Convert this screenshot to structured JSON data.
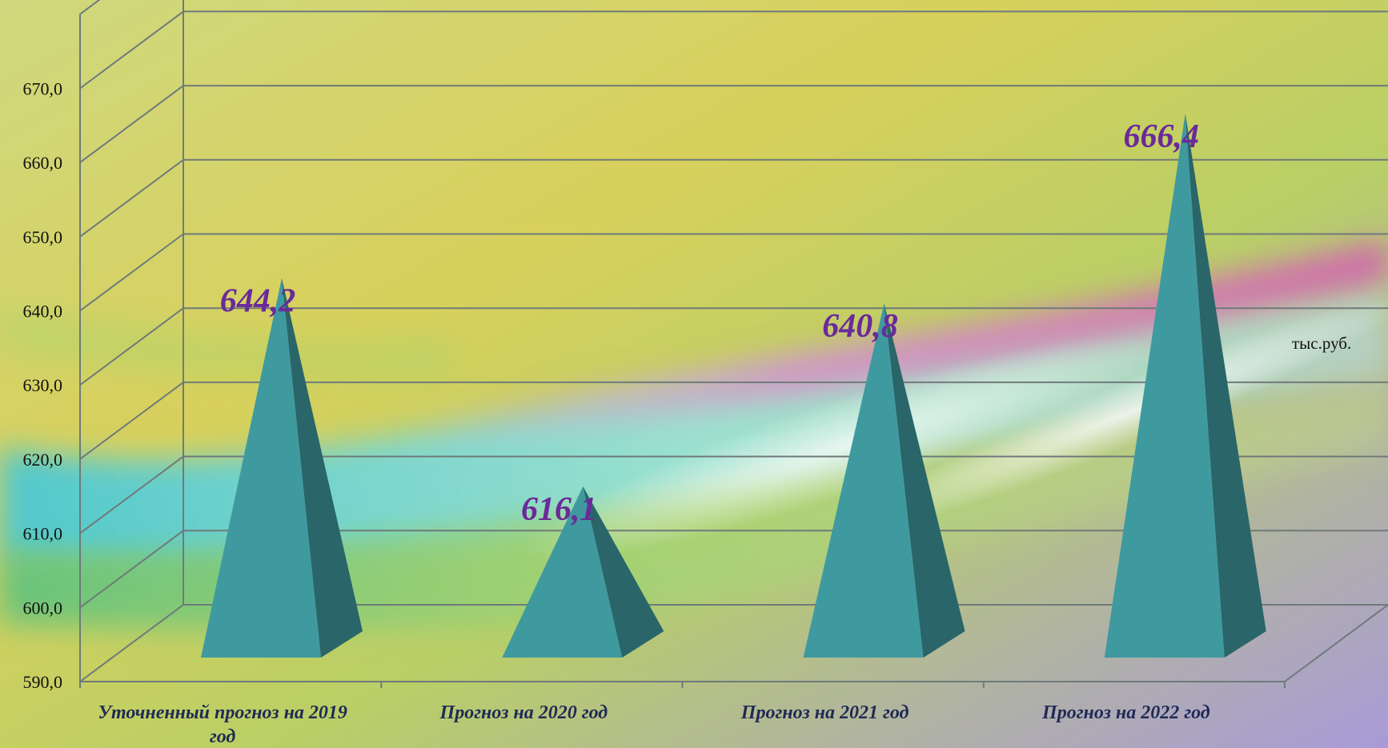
{
  "chart_data": {
    "type": "bar",
    "bar_shape": "pyramid",
    "categories": [
      "Уточненный прогноз на 2019 год",
      "Прогноз на 2020 год",
      "Прогноз на 2021 год",
      "Прогноз на 2022 год"
    ],
    "values": [
      644.2,
      616.1,
      640.8,
      666.4
    ],
    "data_labels": [
      "644,2",
      "616,1",
      "640,8",
      "666,4"
    ],
    "y_ticks": [
      "590,0",
      "600,0",
      "610,0",
      "620,0",
      "630,0",
      "640,0",
      "650,0",
      "660,0",
      "670,0"
    ],
    "ylim": [
      590,
      670
    ],
    "unit": "тыс.руб.",
    "grid": true,
    "colors": {
      "pyramid_front": "#3f9aa0",
      "pyramid_side": "#2a6569",
      "data_label": "#6a2a9a",
      "category_label": "#1f2a55",
      "grid_line": "#6f7a7a"
    }
  }
}
